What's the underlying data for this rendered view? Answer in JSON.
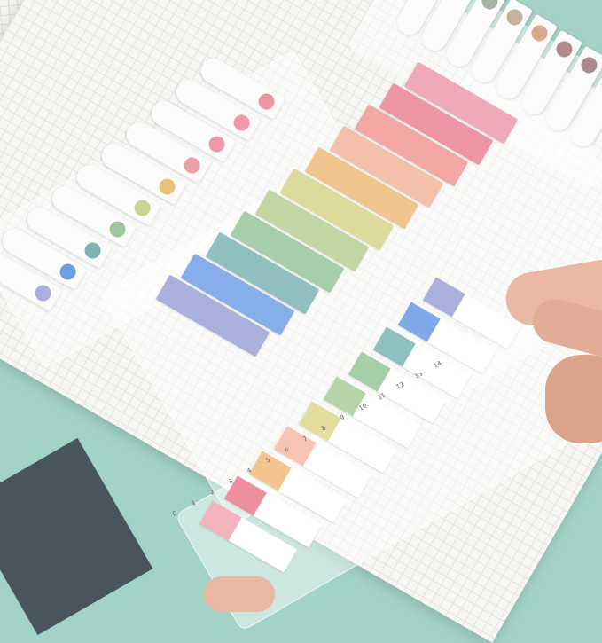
{
  "scene": {
    "background_color": "#a3d2c6",
    "solid_strip_colors": [
      "#a9b0dc",
      "#86aee8",
      "#8fc0bf",
      "#a8cdaa",
      "#c2d7a4",
      "#dcdb9c",
      "#f1c58e",
      "#f3c1aa",
      "#f3a7a4",
      "#ee95a4",
      "#f0a9b7"
    ],
    "indexed_tab_colors": [
      "#f3b3bd",
      "#ee8fa0",
      "#f2c58f",
      "#f6c4b0",
      "#e3de9e",
      "#b7d4a8",
      "#a4cfa8",
      "#8ec0c0",
      "#7fa9ea",
      "#a9b0dc"
    ],
    "round_dot_tab_colors": [
      "#a9b0dc",
      "#6f9ee0",
      "#7fb4b4",
      "#9cc69c",
      "#c8d692",
      "#e9c27e",
      "#eea0a8",
      "#ec9aa4",
      "#ee99a8",
      "#ee96a6"
    ],
    "grey_dot_tab_colors": [
      "#8a8a8a",
      "#9a9a95",
      "#a8b3a3",
      "#c2b39a",
      "#d7a98a",
      "#b08a8a",
      "#a88a90",
      "#b47a86"
    ],
    "ruler_labels": [
      "0",
      "1",
      "2",
      "3",
      "4",
      "5",
      "6",
      "7",
      "8",
      "9",
      "10",
      "11",
      "12",
      "13",
      "14"
    ]
  }
}
